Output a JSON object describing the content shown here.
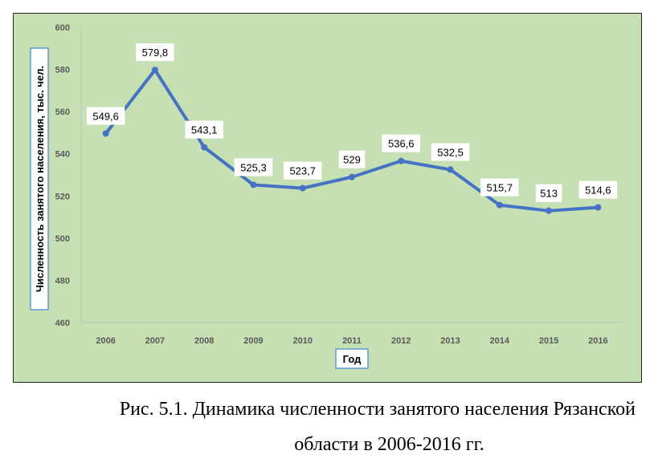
{
  "chart_data": {
    "type": "line",
    "categories": [
      "2006",
      "2007",
      "2008",
      "2009",
      "2010",
      "2011",
      "2012",
      "2013",
      "2014",
      "2015",
      "2016"
    ],
    "series": [
      {
        "values": [
          549.6,
          579.8,
          543.1,
          525.3,
          523.7,
          529,
          536.6,
          532.5,
          515.7,
          513,
          514.6
        ],
        "labels": [
          "549,6",
          "579,8",
          "543,1",
          "525,3",
          "523,7",
          "529",
          "536,6",
          "532,5",
          "515,7",
          "513",
          "514,6"
        ],
        "color": "#4472c4"
      }
    ],
    "xlabel": "Год",
    "ylabel": "Численность занятого населения, тыс. чел.",
    "ylim": [
      460,
      600
    ],
    "yticks": [
      "600",
      "580",
      "560",
      "540",
      "520",
      "500",
      "480",
      "460"
    ],
    "grid": false,
    "legend": "none",
    "plot_background": "#c6e0b4"
  },
  "caption": {
    "line1": "Рис. 5.1. Динамика численности занятого населения Рязанской",
    "line2": "области в 2006-2016 гг."
  }
}
